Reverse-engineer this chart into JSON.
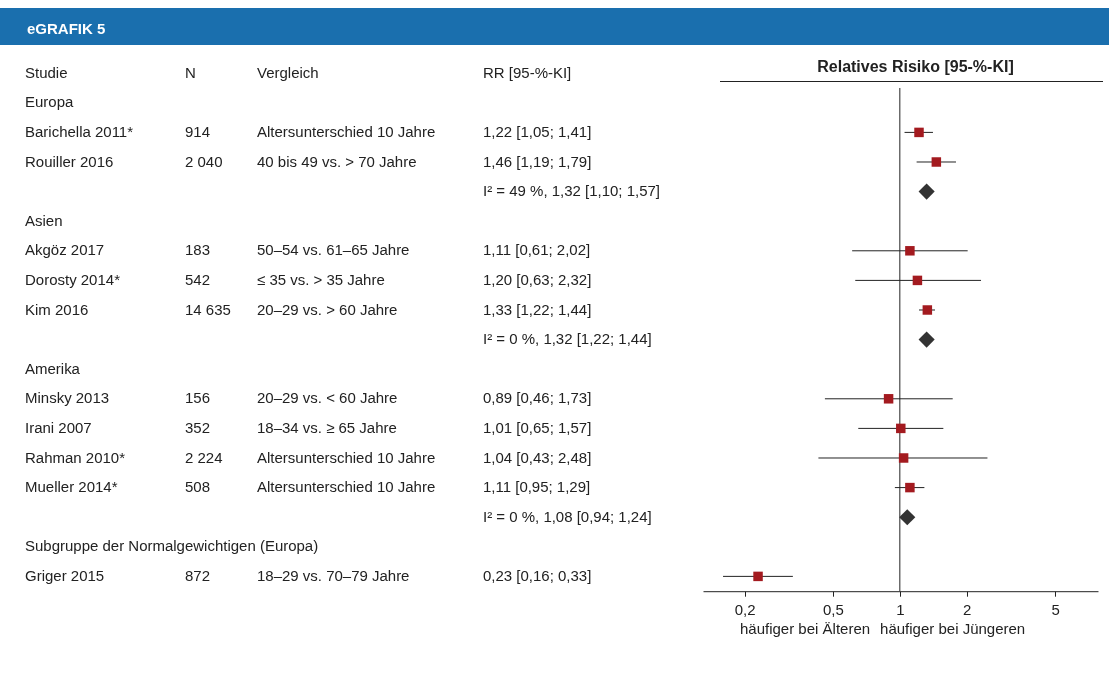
{
  "chart_data": [
    {
      "type": "other",
      "title": "eGRAFIK 5",
      "categories": [
        "Studie",
        "N",
        "Vergleich",
        "RR [95-%-KI]"
      ],
      "y_categories": [
        "Europa",
        "Barichella 2011*",
        "Rouiller 2016",
        null,
        "Asien",
        "Akgöz 2017",
        "Dorosty 2014*",
        "Kim 2016",
        null,
        "Amerika",
        "Minsky 2013",
        "Irani 2007",
        "Rahman 2010*",
        "Mueller 2014*",
        null,
        "Subgruppe der Normalgewichtigen (Europa)",
        "Griger 2015"
      ],
      "cell_labels": [
        null,
        [
          "914",
          "Altersunterschied 10 Jahre",
          "1,22 [1,05; 1,41]"
        ],
        [
          "2 040",
          "40 bis 49 vs. > 70 Jahre",
          "1,46 [1,19; 1,79]"
        ],
        [
          null,
          null,
          "I² = 49 %, 1,32 [1,10; 1,57]"
        ],
        null,
        [
          "183",
          "50–54 vs. 61–65 Jahre",
          "1,11 [0,61; 2,02]"
        ],
        [
          "542",
          "≤ 35 vs. > 35 Jahre",
          "1,20 [0,63; 2,32]"
        ],
        [
          "14 635",
          "20–29 vs. > 60 Jahre",
          "1,33 [1,22; 1,44]"
        ],
        [
          null,
          null,
          "I² = 0 %, 1,32 [1,22; 1,44]"
        ],
        null,
        [
          "156",
          "20–29 vs. < 60 Jahre",
          "0,89 [0,46; 1,73]"
        ],
        [
          "352",
          "18–34 vs. ≥ 65 Jahre",
          "1,01 [0,65; 1,57]"
        ],
        [
          "2 224",
          "Altersunterschied 10 Jahre",
          "1,04 [0,43; 2,48]"
        ],
        [
          "508",
          "Altersunterschied 10 Jahre",
          "1,11 [0,95; 1,29]"
        ],
        [
          null,
          null,
          "I² = 0 %, 1,08 [0,94; 1,24]"
        ],
        null,
        [
          "872",
          "18–29 vs. 70–79 Jahre",
          "0,23 [0,16; 0,33]"
        ]
      ]
    },
    {
      "type": "scatter",
      "title": "Relatives Risiko [95-%-KI]",
      "orientation": "horizontal",
      "log": "x",
      "categories": [
        null,
        null,
        null,
        null,
        null,
        null,
        null,
        null,
        null,
        null,
        null,
        null,
        null,
        null,
        null,
        null,
        null
      ],
      "series": [
        {
          "color": "#a31a1f",
          "marker": "square",
          "values": [
            null,
            1.22,
            1.46,
            null,
            null,
            1.11,
            1.2,
            1.33,
            null,
            null,
            0.89,
            1.01,
            1.04,
            1.11,
            null,
            null,
            0.23
          ],
          "errors": [
            null,
            [
              1.05,
              1.41
            ],
            [
              1.19,
              1.79
            ],
            null,
            null,
            [
              0.61,
              2.02
            ],
            [
              0.63,
              2.32
            ],
            [
              1.22,
              1.44
            ],
            null,
            null,
            [
              0.46,
              1.73
            ],
            [
              0.65,
              1.57
            ],
            [
              0.43,
              2.48
            ],
            [
              0.95,
              1.29
            ],
            null,
            null,
            [
              0.16,
              0.33
            ]
          ]
        },
        {
          "color": "#333333",
          "marker": "diamond",
          "values": [
            null,
            null,
            null,
            1.32,
            null,
            null,
            null,
            null,
            1.32,
            null,
            null,
            null,
            null,
            null,
            1.08,
            null,
            null
          ]
        }
      ],
      "xlim": [
        0.13,
        7.8
      ],
      "xticks": [
        {
          "value": 0.2,
          "label": "0,2"
        },
        {
          "value": 0.5,
          "label": "0,5"
        },
        1,
        2,
        5
      ],
      "ref_lines": [
        {
          "axis": "x",
          "value": 1
        }
      ],
      "annotations": [
        "häufiger bei Älteren",
        "häufiger bei Jüngeren"
      ]
    }
  ]
}
